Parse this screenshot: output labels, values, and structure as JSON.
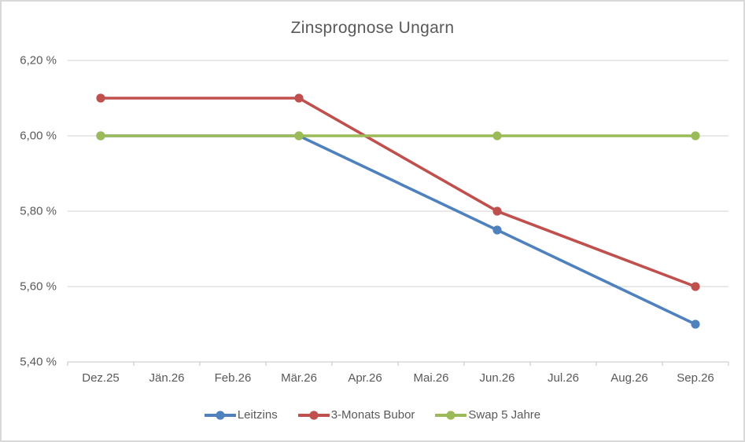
{
  "chart": {
    "title": "Zinsprognose Ungarn"
  },
  "chart_data": {
    "type": "line",
    "title": "Zinsprognose Ungarn",
    "categories": [
      "Dez.25",
      "Jän.26",
      "Feb.26",
      "Mär.26",
      "Apr.26",
      "Mai.26",
      "Jun.26",
      "Jul.26",
      "Aug.26",
      "Sep.26"
    ],
    "series": [
      {
        "name": "Leitzins",
        "color": "#4F81BD",
        "values": [
          6.0,
          null,
          null,
          6.0,
          null,
          null,
          5.75,
          null,
          null,
          5.5
        ]
      },
      {
        "name": "3-Monats Bubor",
        "color": "#C0504D",
        "values": [
          6.1,
          null,
          null,
          6.1,
          null,
          null,
          5.8,
          null,
          null,
          5.6
        ]
      },
      {
        "name": "Swap 5 Jahre",
        "color": "#9BBB59",
        "values": [
          6.0,
          null,
          null,
          6.0,
          null,
          null,
          6.0,
          null,
          null,
          6.0
        ]
      }
    ],
    "xlabel": "",
    "ylabel": "",
    "ylim": [
      5.4,
      6.2
    ],
    "ytick_step": 0.2,
    "ytick_labels": [
      "6,20 %",
      "6,00 %",
      "5,80 %",
      "5,60 %",
      "5,40 %"
    ],
    "grid": true,
    "legend_position": "bottom",
    "colors": {
      "gridline": "#D9D9D9",
      "axis_line": "#D0D0D0",
      "text": "#595959",
      "border": "#D9D9D9"
    }
  }
}
